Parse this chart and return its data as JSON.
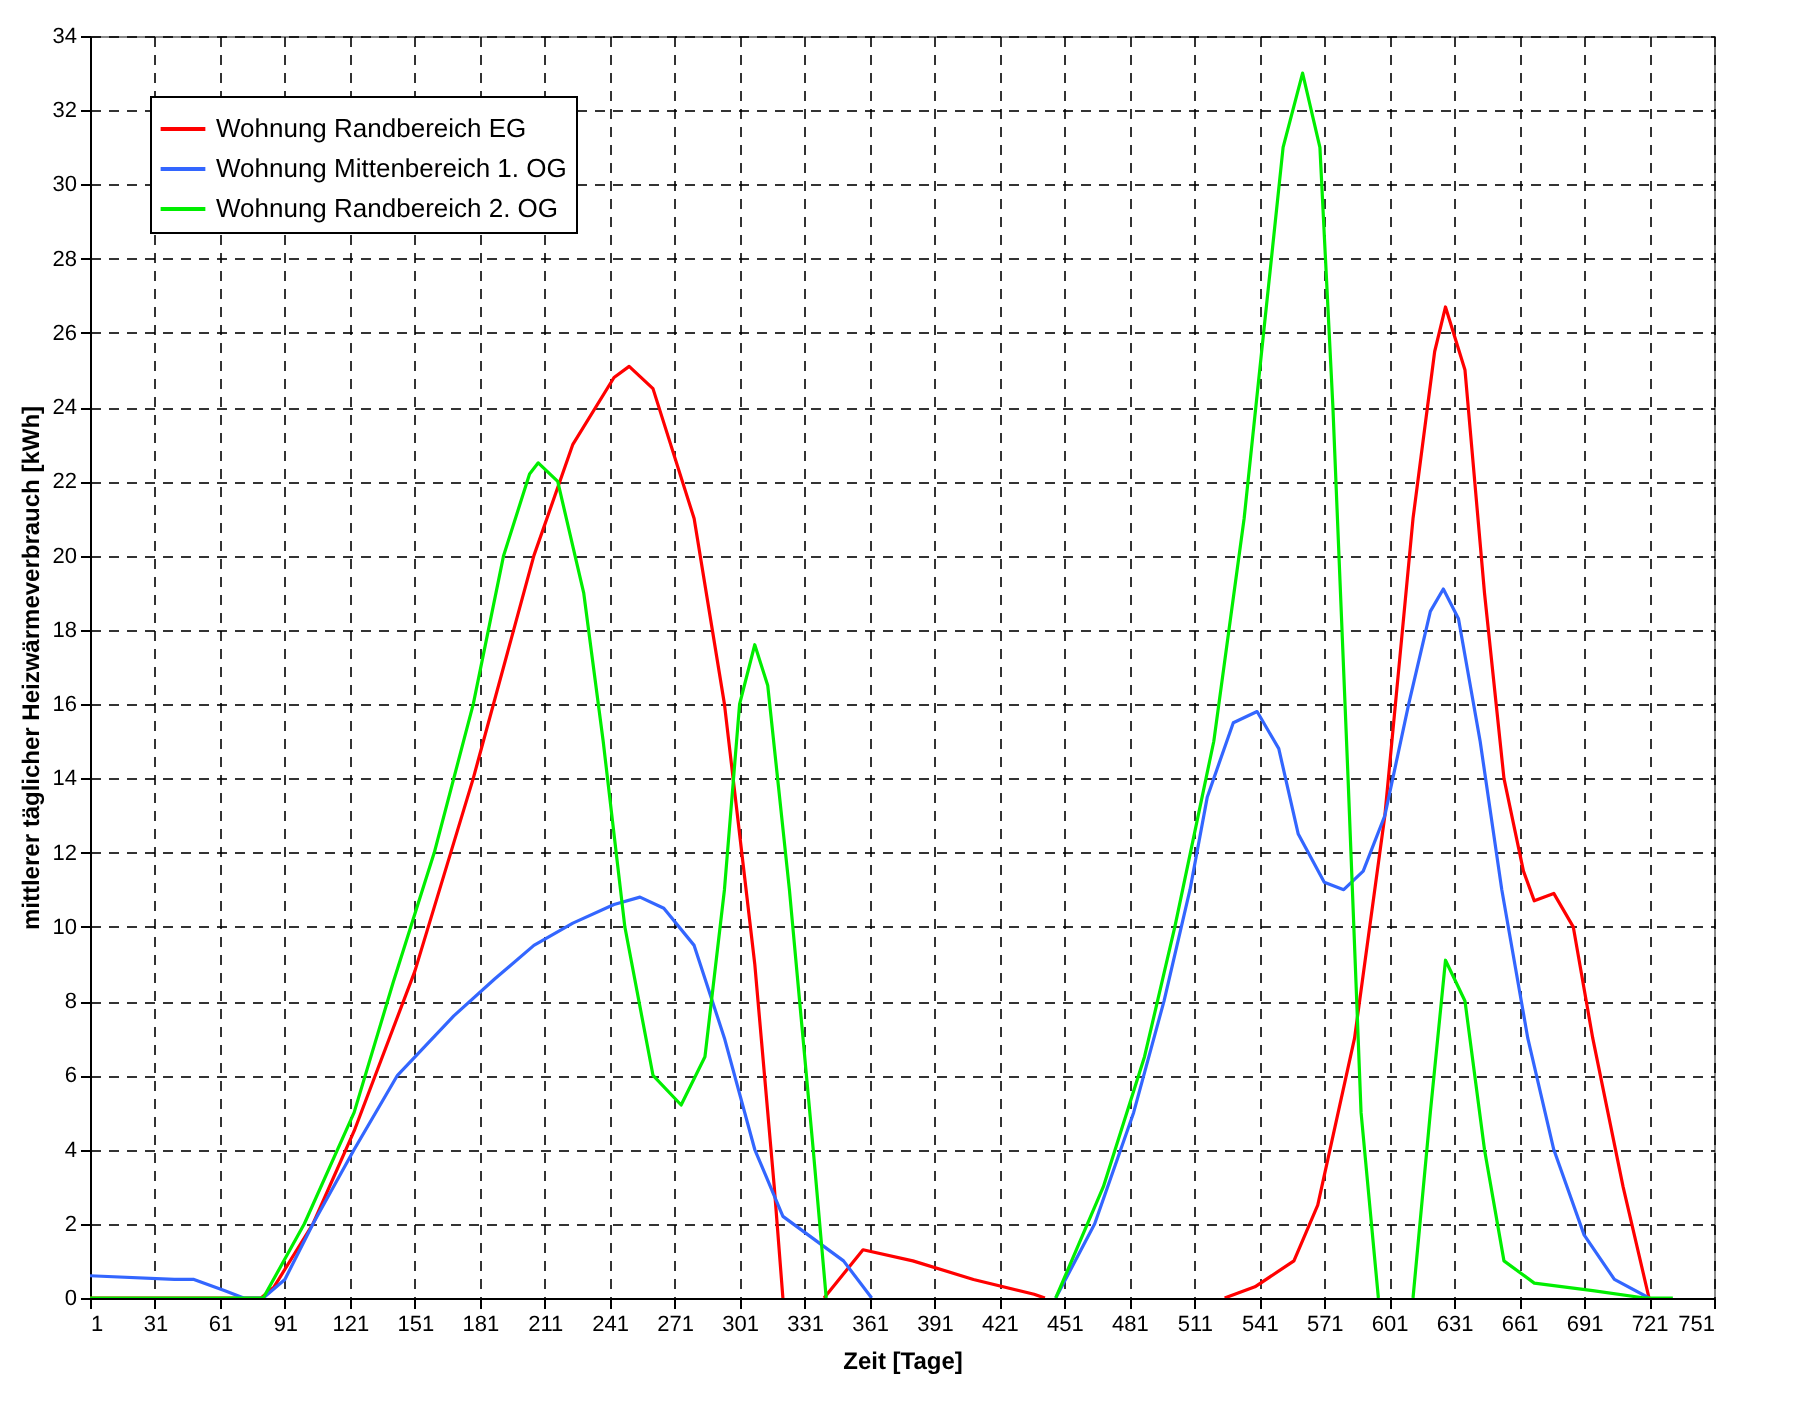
{
  "chart_data": {
    "type": "line",
    "xlabel": "Zeit [Tage]",
    "ylabel": "mittlerer täglicher Heizwärmeverbrauch [kWh]",
    "xlim": [
      1,
      751
    ],
    "xticks": [
      1,
      31,
      61,
      91,
      121,
      151,
      181,
      211,
      241,
      271,
      301,
      331,
      361,
      391,
      421,
      451,
      481,
      511,
      541,
      571,
      601,
      631,
      661,
      691,
      721,
      751
    ],
    "ylim": [
      0,
      34
    ],
    "yticks": [
      0,
      2,
      4,
      6,
      8,
      10,
      12,
      14,
      16,
      18,
      20,
      22,
      24,
      26,
      28,
      30,
      32,
      34
    ],
    "grid": true,
    "legend": "top left",
    "series": [
      {
        "name": "Wohnung Randbereich EG",
        "color": "#ff0000",
        "x": [
          1,
          80,
          86,
          104,
          123,
          151,
          178,
          206,
          224,
          243,
          250,
          261,
          280,
          294,
          308,
          317,
          321,
          330,
          340,
          358,
          381,
          409,
          437,
          442,
          480,
          525,
          539,
          557,
          568,
          585,
          599,
          612,
          622,
          627,
          636,
          645,
          654,
          663,
          668,
          677,
          686,
          695,
          709,
          721
        ],
        "values": [
          0,
          0,
          0.3,
          2,
          4.5,
          8.8,
          14,
          20,
          23,
          24.8,
          25.1,
          24.5,
          21,
          16,
          9,
          3,
          0,
          null,
          0,
          1.3,
          1.0,
          0.5,
          0.1,
          0,
          null,
          0,
          0.3,
          1.0,
          2.5,
          7,
          13,
          21,
          25.5,
          26.7,
          25,
          19,
          14,
          11.5,
          10.7,
          10.9,
          10,
          7,
          3,
          0
        ]
      },
      {
        "name": "Wohnung Mittenbereich 1. OG",
        "color": "#3366ff",
        "x": [
          1,
          40,
          49,
          63,
          72,
          81,
          91,
          104,
          123,
          143,
          169,
          188,
          206,
          224,
          243,
          255,
          266,
          280,
          294,
          308,
          321,
          335,
          349,
          362,
          400,
          447,
          465,
          483,
          497,
          509,
          517,
          529,
          540,
          550,
          559,
          571,
          580,
          589,
          599,
          610,
          620,
          626,
          633,
          643,
          653,
          665,
          677,
          691,
          705,
          721
        ],
        "values": [
          0.6,
          0.5,
          0.5,
          0.2,
          0,
          0,
          0.5,
          2,
          4,
          6,
          7.6,
          8.6,
          9.5,
          10.1,
          10.6,
          10.8,
          10.5,
          9.5,
          7,
          4,
          2.2,
          1.6,
          1,
          0,
          null,
          0,
          2,
          5,
          8,
          11,
          13.5,
          15.5,
          15.8,
          14.8,
          12.5,
          11.2,
          11.0,
          11.5,
          13,
          16,
          18.5,
          19.1,
          18.3,
          15,
          11,
          7,
          4,
          1.7,
          0.5,
          0
        ]
      },
      {
        "name": "Wohnung Randbereich 2. OG",
        "color": "#00ee00",
        "x": [
          1,
          81,
          100,
          123,
          141,
          160,
          178,
          192,
          204,
          208,
          217,
          229,
          238,
          248,
          261,
          274,
          285,
          294,
          301,
          308,
          314,
          324,
          335,
          341,
          400,
          447,
          469,
          488,
          502,
          520,
          534,
          543,
          552,
          561,
          569,
          575,
          582,
          588,
          596,
          604,
          612,
          620,
          627,
          636,
          645,
          654,
          668,
          695,
          719,
          732
        ],
        "values": [
          0,
          0,
          2,
          5,
          8.5,
          12,
          16,
          20,
          22.2,
          22.5,
          22,
          19,
          15,
          10,
          6,
          5.2,
          6.5,
          11,
          16,
          17.6,
          16.5,
          11,
          4,
          0,
          null,
          0,
          3,
          6.5,
          10,
          15,
          21,
          26,
          31,
          33,
          31,
          24,
          14,
          5,
          0,
          null,
          0,
          5,
          9.1,
          8,
          4,
          1,
          0.4,
          0.2,
          0,
          0
        ]
      }
    ]
  }
}
